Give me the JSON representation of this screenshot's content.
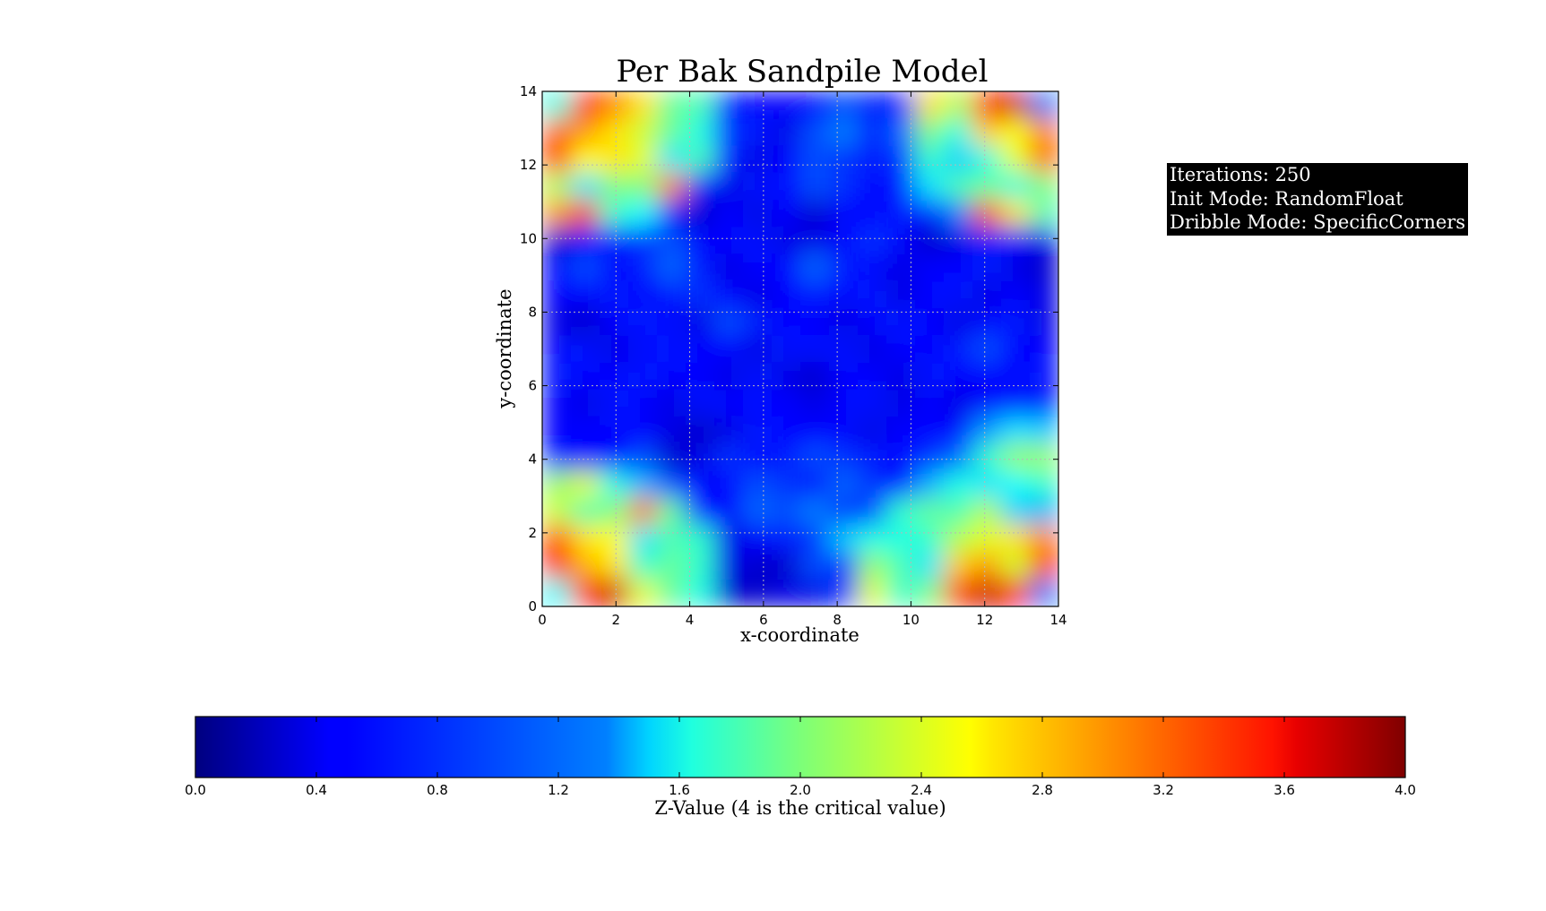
{
  "chart_data": {
    "type": "heatmap",
    "title": "Per Bak Sandpile Model",
    "xlabel": "x-coordinate",
    "ylabel": "y-coordinate",
    "xlim": [
      0,
      14
    ],
    "ylim": [
      0,
      14
    ],
    "x_ticks": [
      "0",
      "2",
      "4",
      "6",
      "8",
      "10",
      "12",
      "14"
    ],
    "y_ticks": [
      "0",
      "2",
      "4",
      "6",
      "8",
      "10",
      "12",
      "14"
    ],
    "grid": true,
    "colormap": "jet",
    "colorbar": {
      "label": "Z-Value (4 is the critical value)",
      "range": [
        0.0,
        4.0
      ],
      "ticks": [
        "0.0",
        "0.4",
        "0.8",
        "1.2",
        "1.6",
        "2.0",
        "2.4",
        "2.8",
        "3.2",
        "3.6",
        "4.0"
      ],
      "orientation": "horizontal"
    },
    "z_rows_top_to_bottom": [
      [
        1.6,
        3.4,
        3.0,
        2.6,
        1.9,
        1.8,
        0.6,
        0.5,
        0.5,
        0.5,
        0.8,
        0.6,
        0.6,
        2.6,
        2.2,
        3.4,
        3.7,
        1.0
      ],
      [
        3.1,
        2.9,
        2.6,
        2.3,
        1.9,
        1.6,
        0.7,
        0.6,
        0.4,
        0.8,
        1.0,
        0.6,
        0.9,
        2.0,
        1.6,
        2.7,
        2.5,
        3.0
      ],
      [
        3.3,
        2.5,
        2.6,
        2.4,
        1.4,
        1.8,
        0.6,
        0.4,
        0.5,
        0.8,
        0.7,
        0.6,
        0.7,
        1.7,
        1.3,
        1.6,
        2.4,
        3.1
      ],
      [
        2.2,
        1.4,
        2.0,
        2.0,
        3.0,
        0.6,
        0.4,
        0.6,
        0.5,
        0.8,
        0.7,
        0.5,
        0.6,
        1.4,
        1.8,
        1.9,
        1.6,
        2.0
      ],
      [
        2.9,
        3.3,
        1.7,
        1.5,
        0.5,
        0.3,
        0.5,
        0.4,
        0.5,
        0.3,
        0.5,
        0.5,
        0.6,
        0.6,
        1.0,
        3.2,
        2.6,
        1.8
      ],
      [
        0.3,
        0.5,
        0.6,
        0.7,
        0.8,
        0.5,
        0.5,
        0.6,
        0.4,
        0.4,
        0.5,
        0.7,
        0.5,
        0.3,
        0.4,
        0.6,
        0.5,
        0.4
      ],
      [
        0.5,
        0.8,
        0.5,
        0.6,
        0.9,
        0.6,
        0.4,
        0.5,
        0.5,
        0.9,
        0.6,
        0.5,
        0.4,
        0.5,
        0.5,
        0.6,
        0.4,
        0.3
      ],
      [
        0.5,
        0.5,
        0.6,
        0.5,
        0.6,
        0.7,
        0.5,
        0.4,
        0.5,
        0.6,
        0.5,
        0.6,
        0.4,
        0.5,
        0.6,
        0.4,
        0.5,
        0.4
      ],
      [
        0.4,
        0.3,
        0.5,
        0.6,
        0.5,
        0.4,
        0.8,
        0.6,
        0.5,
        0.5,
        0.4,
        0.5,
        0.6,
        0.5,
        0.4,
        0.5,
        0.6,
        0.4
      ],
      [
        0.5,
        0.6,
        0.4,
        0.5,
        0.6,
        0.5,
        0.5,
        0.4,
        0.6,
        0.5,
        0.6,
        0.4,
        0.5,
        0.5,
        0.6,
        0.8,
        0.5,
        0.5
      ],
      [
        0.6,
        0.5,
        0.5,
        0.6,
        0.5,
        0.5,
        0.4,
        0.6,
        0.4,
        0.3,
        0.5,
        0.5,
        0.4,
        0.6,
        0.5,
        0.5,
        0.5,
        0.6
      ],
      [
        0.5,
        0.4,
        0.6,
        0.5,
        0.4,
        0.6,
        0.5,
        0.5,
        0.5,
        0.4,
        0.5,
        0.6,
        0.4,
        0.5,
        0.4,
        0.5,
        0.6,
        0.5
      ],
      [
        0.5,
        0.5,
        0.5,
        0.5,
        0.4,
        0.3,
        0.4,
        0.6,
        0.5,
        0.5,
        0.5,
        0.4,
        0.5,
        0.5,
        0.5,
        1.1,
        1.4,
        1.3
      ],
      [
        0.6,
        0.5,
        0.5,
        0.8,
        0.3,
        0.4,
        0.7,
        0.5,
        0.6,
        0.8,
        0.7,
        0.6,
        0.5,
        0.7,
        0.9,
        1.7,
        2.1,
        2.1
      ],
      [
        2.1,
        2.4,
        1.6,
        1.2,
        0.8,
        0.5,
        0.5,
        0.8,
        0.7,
        0.5,
        0.9,
        0.7,
        0.5,
        1.2,
        1.6,
        1.4,
        1.5,
        1.7
      ],
      [
        2.3,
        1.8,
        2.0,
        3.0,
        1.9,
        0.6,
        0.5,
        0.9,
        0.8,
        1.0,
        0.7,
        0.8,
        1.7,
        1.9,
        1.8,
        2.2,
        1.3,
        1.2
      ],
      [
        3.2,
        2.6,
        2.5,
        1.4,
        1.8,
        1.7,
        0.4,
        0.5,
        0.6,
        0.7,
        1.3,
        1.6,
        1.6,
        1.7,
        2.2,
        2.4,
        2.6,
        3.0
      ],
      [
        3.4,
        2.8,
        2.6,
        1.7,
        1.9,
        1.7,
        0.4,
        0.3,
        0.3,
        0.8,
        0.7,
        2.1,
        1.8,
        1.4,
        2.7,
        2.9,
        2.3,
        3.4
      ],
      [
        1.5,
        3.4,
        3.7,
        2.4,
        1.9,
        1.6,
        0.3,
        0.3,
        0.4,
        0.4,
        0.7,
        2.4,
        1.7,
        2.0,
        3.3,
        3.7,
        3.5,
        1.0
      ]
    ]
  },
  "info_box": {
    "lines": [
      "Iterations: 250",
      "Init Mode: RandomFloat",
      "Dribble Mode: SpecificCorners"
    ],
    "background": "#000000",
    "text_color": "#ffffff"
  },
  "colors": {
    "grid": "#b8b8b8",
    "axis": "#000000"
  }
}
